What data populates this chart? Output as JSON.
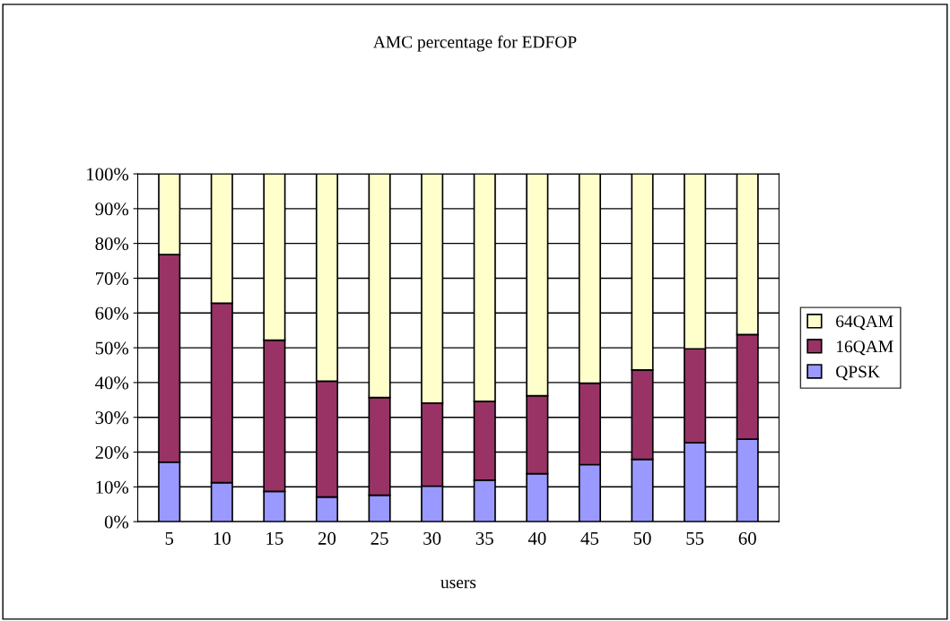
{
  "chart_data": {
    "type": "bar",
    "stacked": true,
    "title": "AMC percentage for EDFOP",
    "xlabel": "users",
    "categories": [
      "5",
      "10",
      "15",
      "20",
      "25",
      "30",
      "35",
      "40",
      "45",
      "50",
      "55",
      "60"
    ],
    "series": [
      {
        "name": "QPSK",
        "color": "#9999ff",
        "values": [
          17.1,
          11.2,
          8.7,
          7.1,
          7.6,
          10.2,
          11.9,
          13.8,
          16.4,
          17.9,
          22.7,
          23.7
        ]
      },
      {
        "name": "16QAM",
        "color": "#993366",
        "values": [
          59.7,
          51.6,
          43.5,
          33.3,
          28.1,
          23.9,
          22.7,
          22.4,
          23.4,
          25.7,
          27.0,
          30.1
        ]
      },
      {
        "name": "64QAM",
        "color": "#ffffcc",
        "values": [
          23.2,
          37.2,
          47.8,
          59.6,
          64.3,
          65.9,
          65.4,
          63.8,
          60.2,
          56.4,
          50.3,
          46.2
        ]
      }
    ],
    "ylim": [
      0,
      100
    ],
    "yticks": [
      {
        "value": 0,
        "label": "0%"
      },
      {
        "value": 10,
        "label": "10%"
      },
      {
        "value": 20,
        "label": "20%"
      },
      {
        "value": 30,
        "label": "30%"
      },
      {
        "value": 40,
        "label": "40%"
      },
      {
        "value": 50,
        "label": "50%"
      },
      {
        "value": 60,
        "label": "60%"
      },
      {
        "value": 70,
        "label": "70%"
      },
      {
        "value": 80,
        "label": "80%"
      },
      {
        "value": 90,
        "label": "90%"
      },
      {
        "value": 100,
        "label": "100%"
      }
    ],
    "grid": "y",
    "legend": "right"
  }
}
